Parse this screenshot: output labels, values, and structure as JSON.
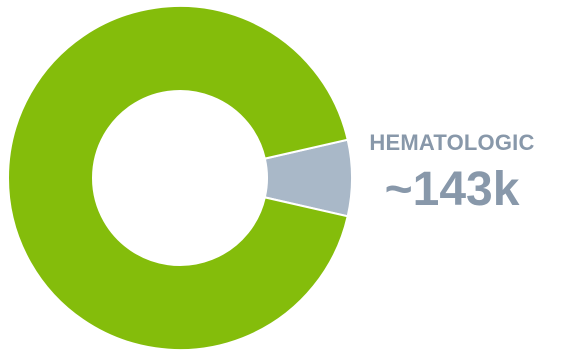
{
  "chart_data": {
    "type": "pie",
    "title": "",
    "donut": true,
    "slices": [
      {
        "label": "HEMATOLOGIC",
        "value": 143,
        "display_value": "~143k",
        "color": "#a9b8c8"
      },
      {
        "label": "",
        "value": 1857,
        "color": "#84bd0b"
      }
    ],
    "legend": "none",
    "label_color": "#8898aa",
    "outline_color": "#ffffff"
  }
}
